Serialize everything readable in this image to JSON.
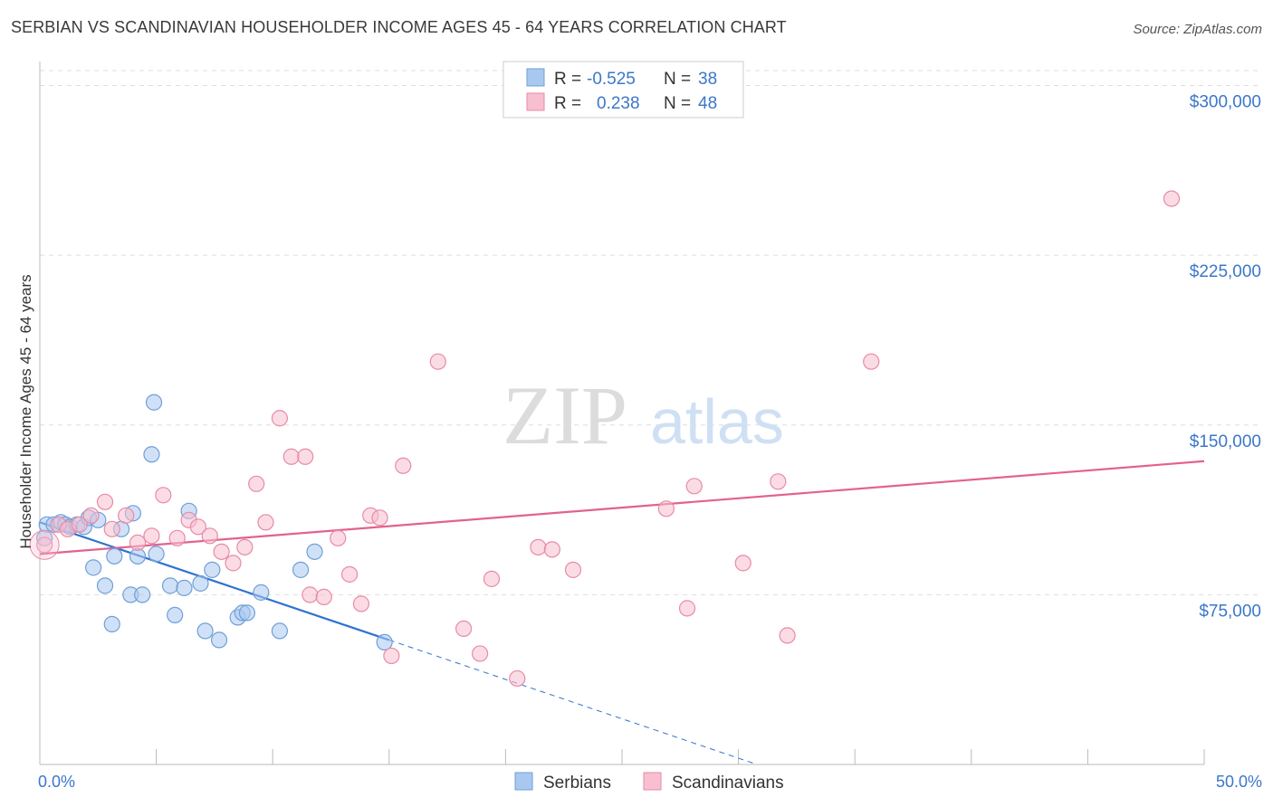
{
  "title": "SERBIAN VS SCANDINAVIAN HOUSEHOLDER INCOME AGES 45 - 64 YEARS CORRELATION CHART",
  "source": "Source: ZipAtlas.com",
  "watermark": {
    "zip": "ZIP",
    "atlas": "atlas"
  },
  "legend": {
    "rows": [
      {
        "r_label": "R =",
        "r_value": "-0.525",
        "n_label": "N =",
        "n_value": "38",
        "color": "#a9c8f0",
        "stroke": "#6f9fd8"
      },
      {
        "r_label": "R =",
        "r_value": "0.238",
        "n_label": "N =",
        "n_value": "48",
        "color": "#f8bfd0",
        "stroke": "#e88aa8"
      }
    ]
  },
  "colors": {
    "blue_fill": "#a9c8f0",
    "blue_stroke": "#6f9fd8",
    "blue_line": "#2f73d0",
    "pink_fill": "#f8bfd0",
    "pink_stroke": "#e88aa8",
    "pink_line": "#e2628f",
    "grid": "#dddddd",
    "tick_text": "#3b77c8"
  },
  "chart_data": {
    "type": "scatter",
    "ylabel": "Householder Income Ages 45 - 64 years",
    "xlabel": "",
    "x_tick_labels": [
      "0.0%",
      "50.0%"
    ],
    "y_tick_labels": [
      "$75,000",
      "$150,000",
      "$225,000",
      "$300,000"
    ],
    "y_ticks": [
      75000,
      150000,
      225000,
      300000
    ],
    "xlim": [
      0,
      50
    ],
    "ylim": [
      0,
      307000
    ],
    "series": [
      {
        "name": "Serbians",
        "r": -0.525,
        "n": 38,
        "points": [
          [
            0.3,
            106000
          ],
          [
            0.6,
            106000
          ],
          [
            0.9,
            107000
          ],
          [
            1.1,
            106000
          ],
          [
            1.3,
            105000
          ],
          [
            1.6,
            106000
          ],
          [
            1.9,
            105000
          ],
          [
            2.1,
            109000
          ],
          [
            2.5,
            108000
          ],
          [
            3.5,
            104000
          ],
          [
            3.2,
            92000
          ],
          [
            2.3,
            87000
          ],
          [
            2.8,
            79000
          ],
          [
            4.0,
            111000
          ],
          [
            4.2,
            92000
          ],
          [
            3.9,
            75000
          ],
          [
            4.4,
            75000
          ],
          [
            5.0,
            93000
          ],
          [
            4.8,
            137000
          ],
          [
            4.9,
            160000
          ],
          [
            5.6,
            79000
          ],
          [
            5.8,
            66000
          ],
          [
            6.2,
            78000
          ],
          [
            6.4,
            112000
          ],
          [
            6.9,
            80000
          ],
          [
            7.1,
            59000
          ],
          [
            7.4,
            86000
          ],
          [
            7.7,
            55000
          ],
          [
            8.5,
            65000
          ],
          [
            8.7,
            67000
          ],
          [
            8.9,
            67000
          ],
          [
            9.5,
            76000
          ],
          [
            10.3,
            59000
          ],
          [
            11.2,
            86000
          ],
          [
            11.8,
            94000
          ],
          [
            14.8,
            54000
          ],
          [
            3.1,
            62000
          ],
          [
            0.2,
            100000
          ]
        ],
        "trend": {
          "x0": 0.0,
          "y0": 107000,
          "x1": 15.0,
          "y1": 55000,
          "x_dash_end": 30.8,
          "y_dash_end": 0
        }
      },
      {
        "name": "Scandinavians",
        "r": 0.238,
        "n": 48,
        "points": [
          [
            0.2,
            97000
          ],
          [
            0.8,
            106000
          ],
          [
            1.2,
            104000
          ],
          [
            1.7,
            106000
          ],
          [
            2.2,
            110000
          ],
          [
            2.8,
            116000
          ],
          [
            3.1,
            104000
          ],
          [
            3.7,
            110000
          ],
          [
            4.2,
            98000
          ],
          [
            4.8,
            101000
          ],
          [
            5.3,
            119000
          ],
          [
            5.9,
            100000
          ],
          [
            6.4,
            108000
          ],
          [
            6.8,
            105000
          ],
          [
            7.3,
            101000
          ],
          [
            7.8,
            94000
          ],
          [
            8.3,
            89000
          ],
          [
            8.8,
            96000
          ],
          [
            9.3,
            124000
          ],
          [
            9.7,
            107000
          ],
          [
            10.3,
            153000
          ],
          [
            10.8,
            136000
          ],
          [
            11.4,
            136000
          ],
          [
            11.6,
            75000
          ],
          [
            12.2,
            74000
          ],
          [
            12.8,
            100000
          ],
          [
            13.3,
            84000
          ],
          [
            13.8,
            71000
          ],
          [
            14.2,
            110000
          ],
          [
            14.6,
            109000
          ],
          [
            15.1,
            48000
          ],
          [
            15.6,
            132000
          ],
          [
            17.1,
            178000
          ],
          [
            18.2,
            60000
          ],
          [
            18.9,
            49000
          ],
          [
            19.4,
            82000
          ],
          [
            20.5,
            38000
          ],
          [
            21.4,
            96000
          ],
          [
            22.0,
            95000
          ],
          [
            22.9,
            86000
          ],
          [
            26.9,
            113000
          ],
          [
            27.8,
            69000
          ],
          [
            28.1,
            123000
          ],
          [
            30.2,
            89000
          ],
          [
            31.7,
            125000
          ],
          [
            32.1,
            57000
          ],
          [
            35.7,
            178000
          ],
          [
            48.6,
            250000
          ]
        ],
        "trend": {
          "x0": 0.0,
          "y0": 93000,
          "x1": 50.0,
          "y1": 134000
        }
      }
    ],
    "legend": [
      "Serbians",
      "Scandinavians"
    ],
    "legend_position": "bottom-center"
  }
}
